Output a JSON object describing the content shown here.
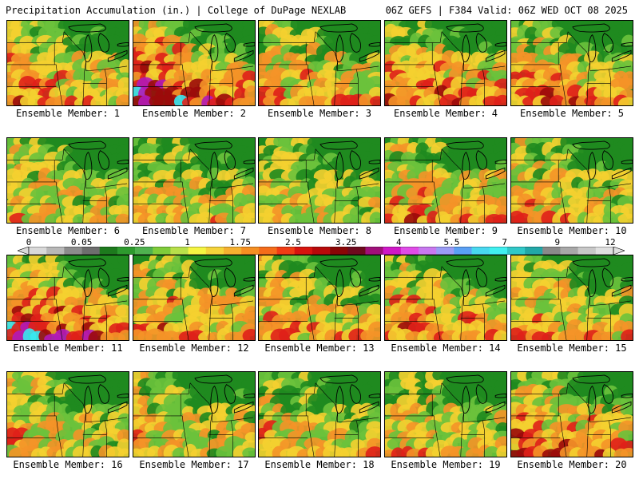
{
  "header": {
    "title": "Precipitation Accumulation (in.) | College of DuPage NEXLAB",
    "run_info": "06Z GEFS | F384 Valid: 06Z WED OCT 08 2025"
  },
  "member_label_prefix": "Ensemble Member: ",
  "members": [
    {
      "id": 1,
      "label": "Ensemble Member: 1",
      "intensity": 0.55,
      "wet_west": 0.7
    },
    {
      "id": 2,
      "label": "Ensemble Member: 2",
      "intensity": 0.9,
      "wet_west": 0.9
    },
    {
      "id": 3,
      "label": "Ensemble Member: 3",
      "intensity": 0.6,
      "wet_west": 0.5
    },
    {
      "id": 4,
      "label": "Ensemble Member: 4",
      "intensity": 0.85,
      "wet_west": 0.4
    },
    {
      "id": 5,
      "label": "Ensemble Member: 5",
      "intensity": 0.7,
      "wet_west": 0.5
    },
    {
      "id": 6,
      "label": "Ensemble Member: 6",
      "intensity": 0.45,
      "wet_west": 0.5
    },
    {
      "id": 7,
      "label": "Ensemble Member: 7",
      "intensity": 0.5,
      "wet_west": 0.3
    },
    {
      "id": 8,
      "label": "Ensemble Member: 8",
      "intensity": 0.35,
      "wet_west": 0.4
    },
    {
      "id": 9,
      "label": "Ensemble Member: 9",
      "intensity": 0.65,
      "wet_west": 0.5
    },
    {
      "id": 10,
      "label": "Ensemble Member: 10",
      "intensity": 0.45,
      "wet_west": 0.6
    },
    {
      "id": 11,
      "label": "Ensemble Member: 11",
      "intensity": 0.85,
      "wet_west": 0.9
    },
    {
      "id": 12,
      "label": "Ensemble Member: 12",
      "intensity": 0.65,
      "wet_west": 0.5
    },
    {
      "id": 13,
      "label": "Ensemble Member: 13",
      "intensity": 0.55,
      "wet_west": 0.5
    },
    {
      "id": 14,
      "label": "Ensemble Member: 14",
      "intensity": 0.65,
      "wet_west": 0.5
    },
    {
      "id": 15,
      "label": "Ensemble Member: 15",
      "intensity": 0.55,
      "wet_west": 0.5
    },
    {
      "id": 16,
      "label": "Ensemble Member: 16",
      "intensity": 0.4,
      "wet_west": 0.5
    },
    {
      "id": 17,
      "label": "Ensemble Member: 17",
      "intensity": 0.4,
      "wet_west": 0.5
    },
    {
      "id": 18,
      "label": "Ensemble Member: 18",
      "intensity": 0.5,
      "wet_west": 0.4
    },
    {
      "id": 19,
      "label": "Ensemble Member: 19",
      "intensity": 0.45,
      "wet_west": 0.4
    },
    {
      "id": 20,
      "label": "Ensemble Member: 20",
      "intensity": 0.8,
      "wet_west": 0.6
    }
  ],
  "colorbar": {
    "tick_labels": [
      "0",
      "0.05",
      "0.25",
      "1",
      "1.75",
      "2.5",
      "3.25",
      "4",
      "5.5",
      "7",
      "9",
      "12"
    ],
    "colors": [
      "#d9d9d9",
      "#b8b8b8",
      "#8c8c8c",
      "#6e6e6e",
      "#1d7a1d",
      "#2e9a2e",
      "#4fb24f",
      "#7fcc3a",
      "#b8e04a",
      "#f5f542",
      "#f5d33a",
      "#f5b030",
      "#f58f22",
      "#f56c1a",
      "#f03c14",
      "#d8140e",
      "#b80a0a",
      "#8a0606",
      "#6e0a1e",
      "#a0107a",
      "#d018c8",
      "#e04ce8",
      "#c878f0",
      "#9a9cf5",
      "#5aa0f5",
      "#48d8f0",
      "#40f0f0",
      "#30c8c8",
      "#22a8a8",
      "#8a8a8a",
      "#a8a8a8",
      "#c8c8c8",
      "#e0e0e0"
    ]
  },
  "palette": {
    "low": "#1f8a1f",
    "mid": "#f5d030",
    "high": "#e0201a",
    "extreme": "#b21ab8",
    "max": "#3ae8f0",
    "border": "#000000"
  }
}
